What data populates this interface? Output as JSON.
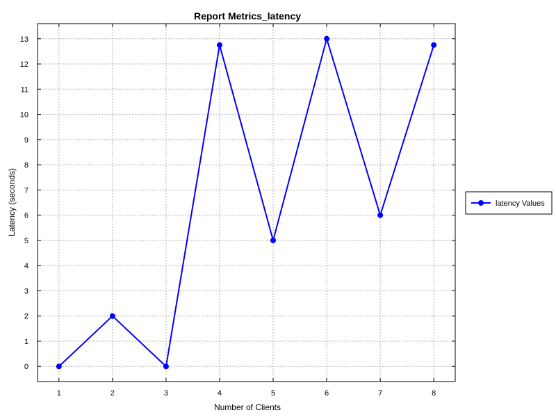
{
  "chart_data": {
    "type": "line",
    "title": "Report Metrics_latency",
    "xlabel": "Number of Clients",
    "ylabel": "Latency (seconds)",
    "x": [
      1,
      2,
      3,
      4,
      5,
      6,
      7,
      8
    ],
    "xlim": [
      0.6,
      8.4
    ],
    "ylim": [
      -0.6,
      13.6
    ],
    "xticks": [
      "1",
      "2",
      "3",
      "4",
      "5",
      "6",
      "7",
      "8"
    ],
    "yticks": [
      "0",
      "1",
      "2",
      "3",
      "4",
      "5",
      "6",
      "7",
      "8",
      "9",
      "10",
      "11",
      "12",
      "13"
    ],
    "grid": true,
    "legend_position": "right",
    "series": [
      {
        "name": "latency Values",
        "color": "#0000ff",
        "marker": "circle",
        "values": [
          0,
          2,
          0,
          12.75,
          5,
          13,
          6,
          12.75
        ]
      }
    ]
  }
}
